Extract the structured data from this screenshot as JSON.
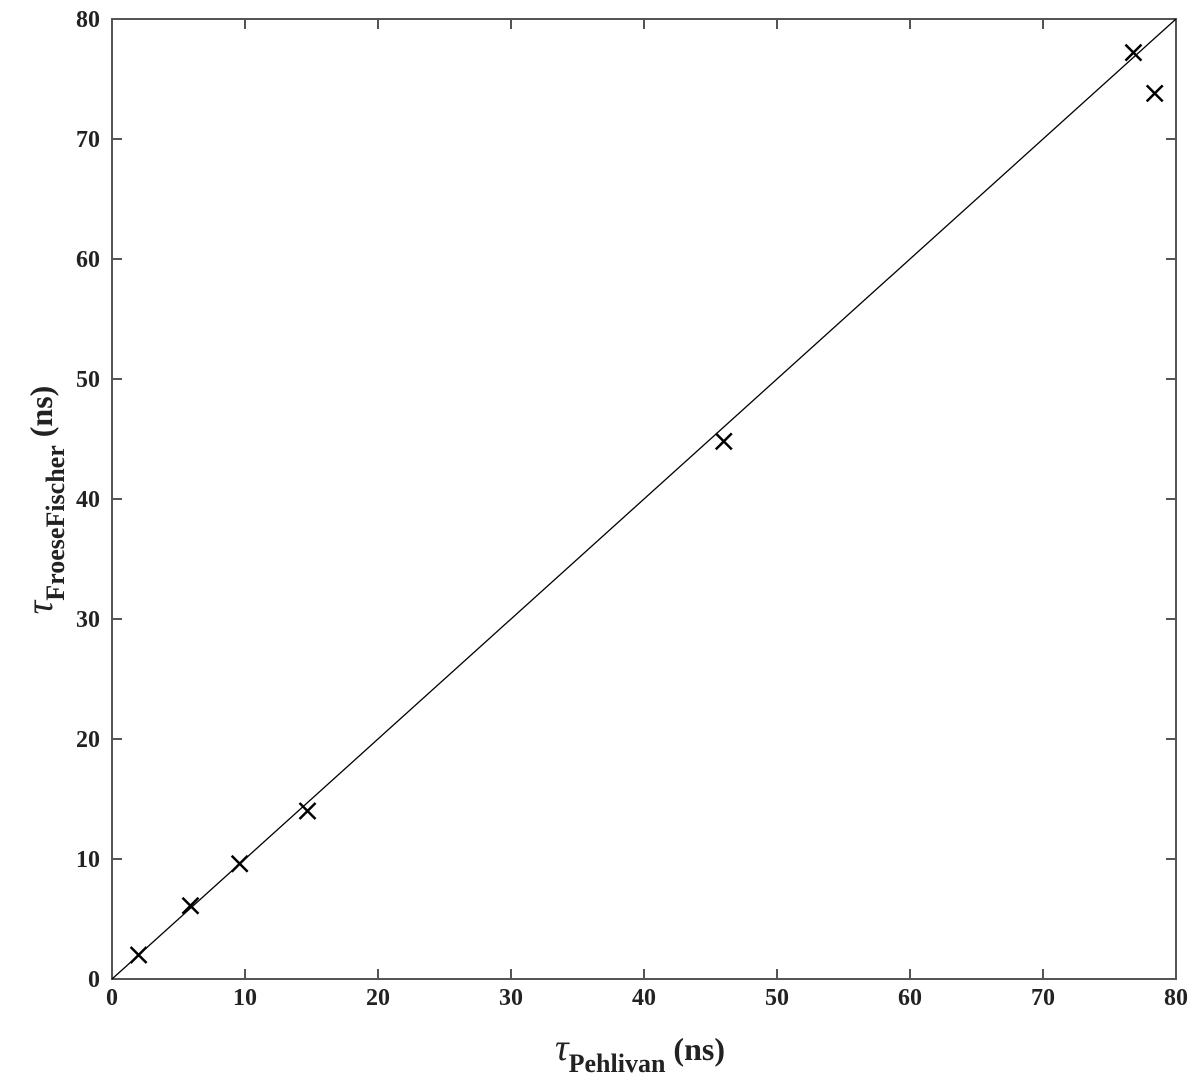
{
  "chart_data": {
    "type": "scatter",
    "x_label": {
      "symbol": "τ",
      "subscript": "Pehlivan",
      "unit": "(ns)"
    },
    "y_label": {
      "symbol": "τ",
      "subscript": "FroeseFischer",
      "unit": "(ns)"
    },
    "x": [
      2.0,
      5.9,
      9.6,
      14.7,
      46.0,
      76.8,
      78.4
    ],
    "values": [
      2.0,
      6.1,
      9.6,
      14.0,
      44.8,
      77.2,
      73.8
    ],
    "color": "#000000",
    "marker": "x",
    "reference_line": {
      "x": [
        0,
        80
      ],
      "y": [
        0,
        80
      ]
    },
    "xlim": [
      0,
      80
    ],
    "ylim": [
      0,
      80
    ],
    "xticks": [
      0,
      10,
      20,
      30,
      40,
      50,
      60,
      70,
      80
    ],
    "yticks": [
      0,
      10,
      20,
      30,
      40,
      50,
      60,
      70,
      80
    ],
    "grid": false
  }
}
